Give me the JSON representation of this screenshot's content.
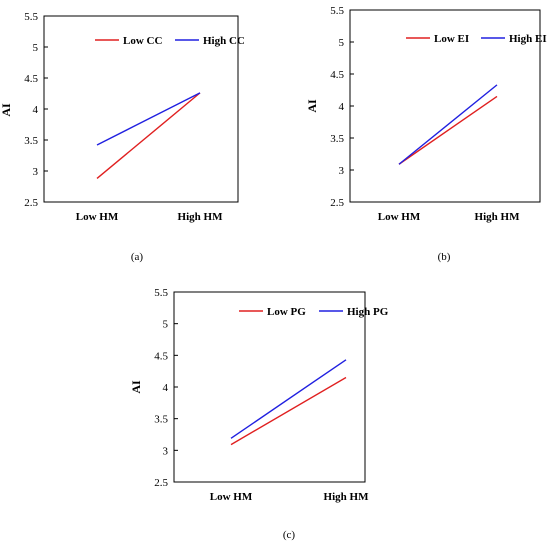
{
  "chart_data": [
    {
      "type": "line",
      "caption": "(a)",
      "ylabel": "AI",
      "xlabel": "",
      "categories": [
        "Low HM",
        "High HM"
      ],
      "ylim": [
        2.5,
        5.5
      ],
      "yticks": [
        "2.5",
        "3",
        "3.5",
        "4",
        "4.5",
        "5",
        "5.5"
      ],
      "legend": "top",
      "grid": false,
      "series": [
        {
          "name": "Low CC",
          "color": "#e02020",
          "values": [
            2.88,
            4.26
          ]
        },
        {
          "name": "High CC",
          "color": "#2020e0",
          "values": [
            3.42,
            4.26
          ]
        }
      ]
    },
    {
      "type": "line",
      "caption": "(b)",
      "ylabel": "AI",
      "xlabel": "",
      "categories": [
        "Low HM",
        "High HM"
      ],
      "ylim": [
        2.5,
        5.5
      ],
      "yticks": [
        "2.5",
        "3",
        "3.5",
        "4",
        "4.5",
        "5",
        "5.5"
      ],
      "legend": "top",
      "grid": false,
      "series": [
        {
          "name": "Low EI",
          "color": "#e02020",
          "values": [
            3.09,
            4.15
          ]
        },
        {
          "name": "High EI",
          "color": "#2020e0",
          "values": [
            3.09,
            4.33
          ]
        }
      ]
    },
    {
      "type": "line",
      "caption": "(c)",
      "ylabel": "AI",
      "xlabel": "",
      "categories": [
        "Low HM",
        "High HM"
      ],
      "ylim": [
        2.5,
        5.5
      ],
      "yticks": [
        "2.5",
        "3",
        "3.5",
        "4",
        "4.5",
        "5",
        "5.5"
      ],
      "legend": "top",
      "grid": false,
      "series": [
        {
          "name": "Low PG",
          "color": "#e02020",
          "values": [
            3.09,
            4.15
          ]
        },
        {
          "name": "High PG",
          "color": "#2020e0",
          "values": [
            3.19,
            4.43
          ]
        }
      ]
    }
  ]
}
